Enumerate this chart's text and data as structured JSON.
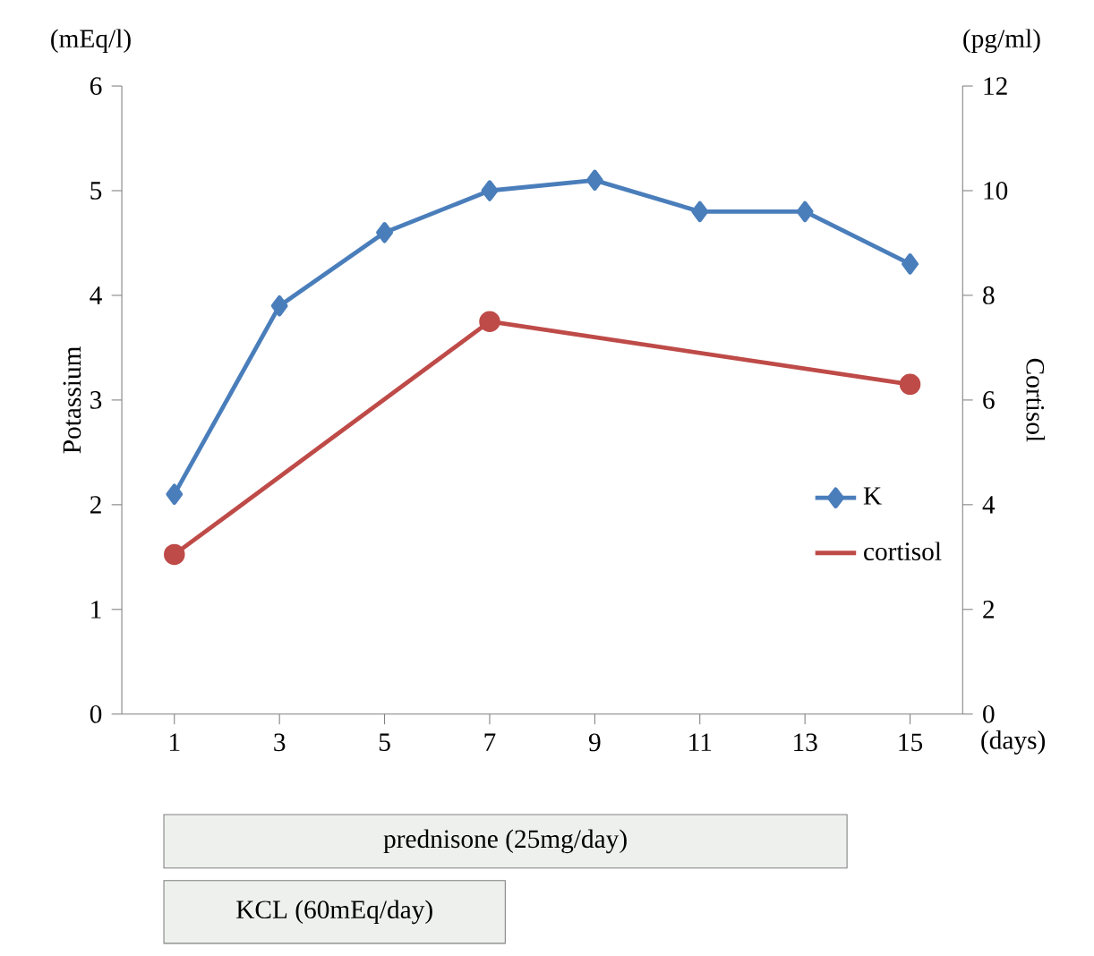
{
  "chart_data": {
    "type": "line",
    "xlabel": "(days)",
    "ylabel": "Potassium",
    "y2label": "Cortisol",
    "annotations": [
      "(mEq/l)",
      "(pg/ml)",
      "prednisone (25mg/day)",
      "KCL (60mEq/day)"
    ],
    "series": [
      {
        "name": "K",
        "color": "#4a7ebb",
        "marker": "diamond",
        "x": [
          1,
          3,
          5,
          7,
          9,
          11,
          13,
          15
        ],
        "values": [
          2.1,
          3.9,
          4.6,
          5.0,
          5.1,
          4.8,
          4.8,
          4.3
        ]
      },
      {
        "name": "cortisol",
        "color": "#be4b48",
        "marker": "circle",
        "axis": "y2",
        "x": [
          1,
          7,
          15
        ],
        "values": [
          3.05,
          7.5,
          6.3
        ]
      }
    ],
    "xlim": [
      0,
      16
    ],
    "xticks": [
      1,
      3,
      5,
      7,
      9,
      11,
      13,
      15
    ],
    "ylim": [
      0,
      6
    ],
    "yticks": [
      0,
      1,
      2,
      3,
      4,
      5,
      6
    ],
    "y2lim": [
      0,
      12
    ],
    "y2ticks": [
      0,
      2,
      4,
      6,
      8,
      10,
      12
    ],
    "grid": false,
    "legend": "right",
    "line_style": "solid"
  }
}
